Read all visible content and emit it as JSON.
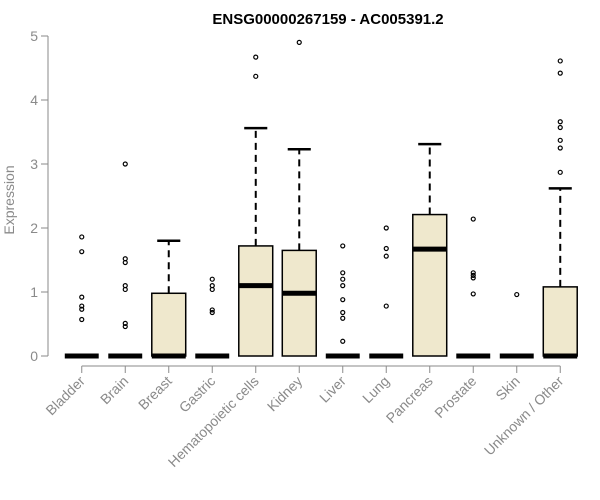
{
  "chart_data": {
    "type": "boxplot",
    "title": "ENSG00000267159 - AC005391.2",
    "xlabel": "",
    "ylabel": "Expression",
    "ylim": [
      0,
      5
    ],
    "yticks": [
      "0",
      "1",
      "2",
      "3",
      "4",
      "5"
    ],
    "grid": false,
    "box_color": "#efe8cd",
    "categories": [
      "Bladder",
      "Brain",
      "Breast",
      "Gastric",
      "Hematopoietic cells",
      "Kidney",
      "Liver",
      "Lung",
      "Pancreas",
      "Prostate",
      "Skin",
      "Unknown / Other"
    ],
    "boxes": [
      {
        "q1": 0,
        "median": 0,
        "q3": 0,
        "whisker_low": 0,
        "whisker_high": 0,
        "outliers": [
          1.86,
          1.63,
          0.92,
          0.78,
          0.73,
          0.57
        ]
      },
      {
        "q1": 0,
        "median": 0,
        "q3": 0,
        "whisker_low": 0,
        "whisker_high": 0,
        "outliers": [
          3.0,
          1.52,
          1.46,
          1.1,
          1.04,
          0.51,
          0.46
        ]
      },
      {
        "q1": 0,
        "median": 0,
        "q3": 0.98,
        "whisker_low": 0,
        "whisker_high": 1.8,
        "outliers": []
      },
      {
        "q1": 0,
        "median": 0,
        "q3": 0,
        "whisker_low": 0,
        "whisker_high": 0,
        "outliers": [
          1.2,
          1.1,
          1.04,
          0.72,
          0.68
        ]
      },
      {
        "q1": 0,
        "median": 1.1,
        "q3": 1.72,
        "whisker_low": 0,
        "whisker_high": 3.56,
        "outliers": [
          4.67,
          4.37
        ]
      },
      {
        "q1": 0,
        "median": 0.98,
        "q3": 1.65,
        "whisker_low": 0,
        "whisker_high": 3.23,
        "outliers": [
          4.9
        ]
      },
      {
        "q1": 0,
        "median": 0,
        "q3": 0,
        "whisker_low": 0,
        "whisker_high": 0,
        "outliers": [
          1.72,
          1.3,
          1.2,
          1.1,
          0.88,
          0.68,
          0.59,
          0.23
        ]
      },
      {
        "q1": 0,
        "median": 0,
        "q3": 0,
        "whisker_low": 0,
        "whisker_high": 0,
        "outliers": [
          2.0,
          1.68,
          1.56,
          0.78
        ]
      },
      {
        "q1": 0,
        "median": 1.67,
        "q3": 2.21,
        "whisker_low": 0,
        "whisker_high": 3.31,
        "outliers": []
      },
      {
        "q1": 0,
        "median": 0,
        "q3": 0,
        "whisker_low": 0,
        "whisker_high": 0,
        "outliers": [
          2.14,
          1.3,
          1.26,
          1.22,
          0.97
        ]
      },
      {
        "q1": 0,
        "median": 0,
        "q3": 0,
        "whisker_low": 0,
        "whisker_high": 0,
        "outliers": [
          0.96
        ]
      },
      {
        "q1": 0,
        "median": 0,
        "q3": 1.08,
        "whisker_low": 0,
        "whisker_high": 2.62,
        "outliers": [
          4.61,
          4.42,
          3.66,
          3.57,
          3.37,
          3.25,
          2.87
        ]
      }
    ]
  }
}
